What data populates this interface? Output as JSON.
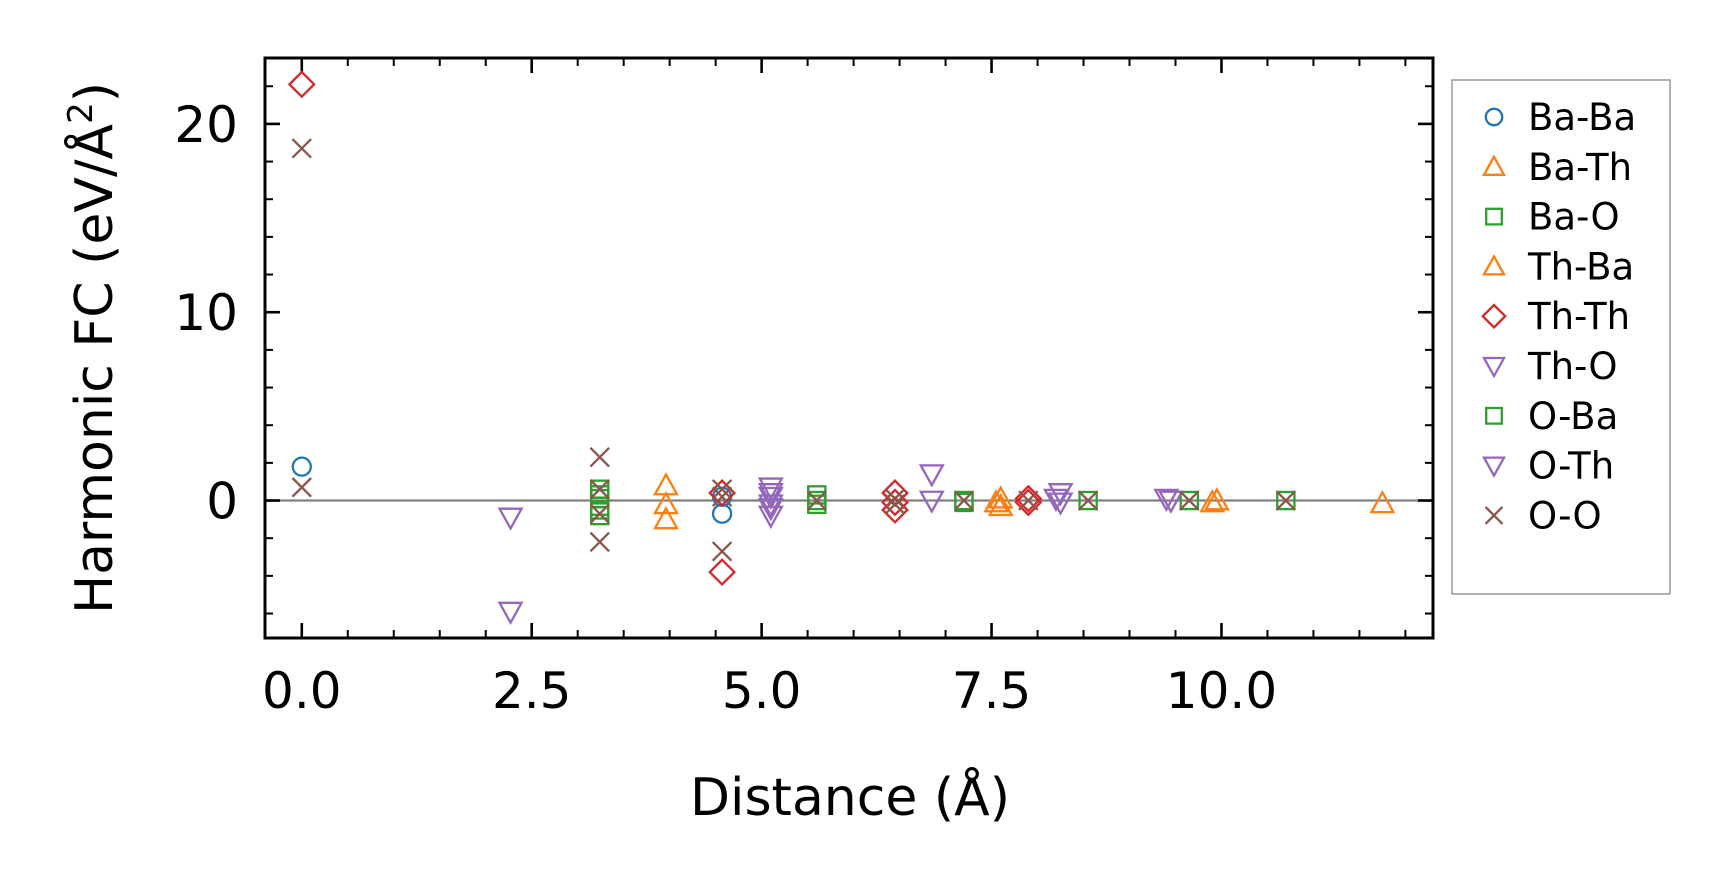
{
  "chart_data": {
    "type": "scatter",
    "xlabel": "Distance (Å)",
    "ylabel_prefix": "Harmonic FC (eV/Å",
    "ylabel_sup": "2",
    "ylabel_suffix": ")",
    "xlim": [
      -0.4,
      12.3
    ],
    "ylim": [
      -7.3,
      23.5
    ],
    "x_major_ticks": [
      0.0,
      2.5,
      5.0,
      7.5,
      10.0
    ],
    "x_tick_labels": [
      "0.0",
      "2.5",
      "5.0",
      "7.5",
      "10.0"
    ],
    "y_major_ticks": [
      0,
      10,
      20
    ],
    "y_tick_labels": [
      "0",
      "10",
      "20"
    ],
    "x_minor_step": 0.5,
    "y_minor_step": 2,
    "zero_line": true,
    "legend_position": "outside-right",
    "series": [
      {
        "name": "Ba-Ba",
        "marker": "circle",
        "color": "#1f77b4",
        "points": [
          [
            0.0,
            1.8
          ],
          [
            4.57,
            -0.7
          ],
          [
            4.57,
            0.2
          ]
        ]
      },
      {
        "name": "Ba-Th",
        "marker": "triangle-up",
        "color": "#ff7f0e",
        "points": [
          [
            3.96,
            0.8
          ],
          [
            3.96,
            -0.2
          ],
          [
            3.96,
            -1.0
          ],
          [
            7.6,
            0.1
          ],
          [
            7.6,
            -0.3
          ],
          [
            9.9,
            -0.1
          ],
          [
            11.75,
            -0.15
          ]
        ]
      },
      {
        "name": "Ba-O",
        "marker": "square",
        "color": "#2ca02c",
        "points": [
          [
            3.24,
            0.6
          ],
          [
            3.24,
            0.1
          ],
          [
            3.24,
            -0.3
          ],
          [
            3.24,
            -0.8
          ],
          [
            5.6,
            0.3
          ],
          [
            5.6,
            -0.2
          ],
          [
            7.2,
            0.0
          ],
          [
            8.55,
            0.0
          ],
          [
            9.65,
            0.0
          ],
          [
            10.7,
            0.0
          ]
        ]
      },
      {
        "name": "Th-Ba",
        "marker": "triangle-up",
        "color": "#ff7f0e",
        "points": [
          [
            7.55,
            -0.1
          ],
          [
            9.95,
            0.0
          ]
        ]
      },
      {
        "name": "Th-Th",
        "marker": "diamond",
        "color": "#d62728",
        "points": [
          [
            0.0,
            22.1
          ],
          [
            4.57,
            -3.8
          ],
          [
            4.57,
            0.4
          ],
          [
            6.45,
            0.4
          ],
          [
            6.45,
            -0.1
          ],
          [
            6.45,
            -0.5
          ],
          [
            7.9,
            0.1
          ],
          [
            7.9,
            -0.1
          ]
        ]
      },
      {
        "name": "Th-O",
        "marker": "triangle-down",
        "color": "#9467bd",
        "points": [
          [
            2.27,
            -0.9
          ],
          [
            2.27,
            -5.9
          ],
          [
            5.1,
            0.7
          ],
          [
            5.1,
            0.2
          ],
          [
            5.1,
            -0.2
          ],
          [
            5.1,
            -0.8
          ],
          [
            6.85,
            1.4
          ],
          [
            6.85,
            0.0
          ],
          [
            8.25,
            0.4
          ],
          [
            8.25,
            -0.1
          ],
          [
            9.4,
            0.1
          ]
        ]
      },
      {
        "name": "O-Ba",
        "marker": "square",
        "color": "#2ca02c",
        "points": [
          [
            3.24,
            0.3
          ],
          [
            3.24,
            -0.5
          ],
          [
            5.6,
            0.0
          ],
          [
            7.2,
            -0.1
          ]
        ]
      },
      {
        "name": "O-Th",
        "marker": "triangle-down",
        "color": "#9467bd",
        "points": [
          [
            5.1,
            0.4
          ],
          [
            5.1,
            -0.4
          ],
          [
            9.45,
            0.0
          ],
          [
            8.2,
            0.1
          ]
        ]
      },
      {
        "name": "O-O",
        "marker": "x",
        "color": "#8c564b",
        "points": [
          [
            0.0,
            18.7
          ],
          [
            0.0,
            0.7
          ],
          [
            3.24,
            2.3
          ],
          [
            3.24,
            0.6
          ],
          [
            3.24,
            -0.7
          ],
          [
            3.24,
            -2.2
          ],
          [
            4.57,
            0.6
          ],
          [
            4.57,
            0.2
          ],
          [
            4.57,
            -2.7
          ],
          [
            5.6,
            0.0
          ],
          [
            6.45,
            0.1
          ],
          [
            6.45,
            -0.2
          ],
          [
            7.2,
            0.0
          ],
          [
            7.9,
            0.0
          ],
          [
            8.55,
            0.0
          ],
          [
            9.65,
            0.0
          ],
          [
            10.7,
            0.0
          ]
        ]
      }
    ]
  }
}
